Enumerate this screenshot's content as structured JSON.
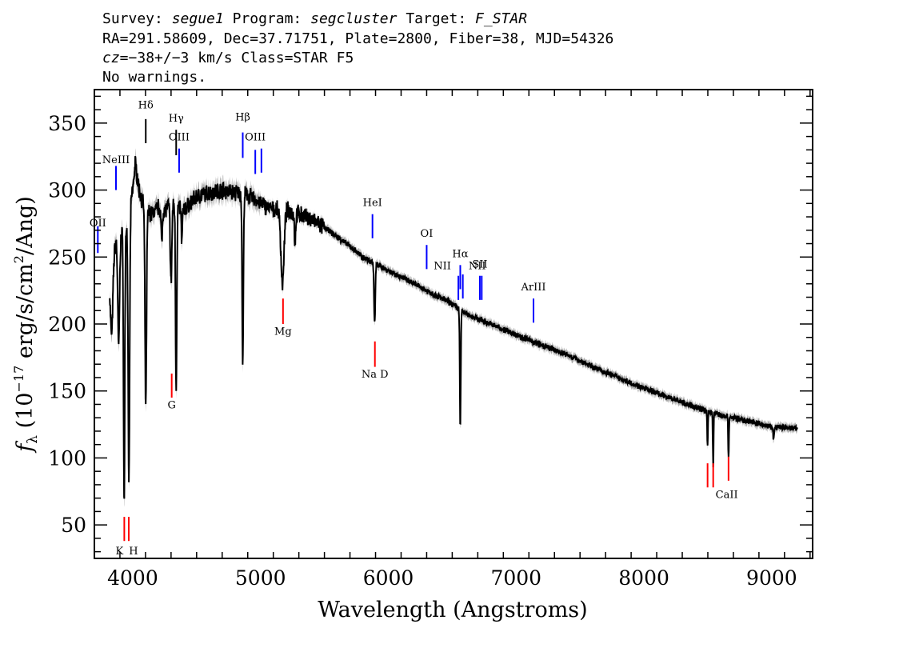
{
  "header": {
    "line1_prefix": "Survey: ",
    "survey": "segue1",
    "program_prefix": " Program: ",
    "program": "segcluster",
    "target_prefix": " Target: ",
    "target": "F_STAR",
    "line2": "RA=291.58609, Dec=37.71751, Plate=2800, Fiber=38, MJD=54326",
    "cz_prefix": "cz=",
    "cz_value": "−38+/−3",
    "cz_suffix": " km/s Class=STAR F5",
    "line4": "No warnings."
  },
  "chart_data": {
    "type": "line",
    "title": "",
    "xlabel": "Wavelength (Angstroms)",
    "ylabel": "f_λ (10^-17 erg/s/cm^2/Ang)",
    "ylabel_parts": {
      "f": "f",
      "sub": "λ",
      "pre": " (10",
      "exp1": "−17",
      "mid": " erg/s/cm",
      "exp2": "2",
      "post": "/Ang)"
    },
    "xlim": [
      3700,
      9320
    ],
    "ylim": [
      25,
      375
    ],
    "xticks": [
      4000,
      5000,
      6000,
      7000,
      8000,
      9000
    ],
    "yticks": [
      50,
      100,
      150,
      200,
      250,
      300,
      350
    ],
    "colors": {
      "spectrum": "#000000",
      "error_band": "#a9a9a9",
      "emission": "#0000ff",
      "absorption": "#ff0000",
      "lines": "#000000"
    },
    "continuum": [
      [
        3820,
        240
      ],
      [
        3850,
        255
      ],
      [
        3870,
        262
      ],
      [
        3900,
        265
      ],
      [
        3950,
        272
      ],
      [
        4000,
        300
      ],
      [
        4020,
        320
      ],
      [
        4050,
        300
      ],
      [
        4100,
        285
      ],
      [
        4150,
        282
      ],
      [
        4200,
        287
      ],
      [
        4250,
        285
      ],
      [
        4300,
        290
      ],
      [
        4350,
        288
      ],
      [
        4400,
        285
      ],
      [
        4500,
        295
      ],
      [
        4600,
        298
      ],
      [
        4700,
        300
      ],
      [
        4800,
        298
      ],
      [
        4900,
        296
      ],
      [
        5000,
        290
      ],
      [
        5100,
        285
      ],
      [
        5200,
        285
      ],
      [
        5300,
        282
      ],
      [
        5400,
        278
      ],
      [
        5500,
        272
      ],
      [
        5600,
        265
      ],
      [
        5700,
        258
      ],
      [
        5800,
        250
      ],
      [
        5900,
        245
      ],
      [
        6000,
        240
      ],
      [
        6200,
        230
      ],
      [
        6400,
        220
      ],
      [
        6500,
        215
      ],
      [
        6600,
        208
      ],
      [
        6800,
        200
      ],
      [
        7000,
        192
      ],
      [
        7200,
        184
      ],
      [
        7400,
        177
      ],
      [
        7600,
        168
      ],
      [
        7800,
        160
      ],
      [
        8000,
        152
      ],
      [
        8200,
        145
      ],
      [
        8400,
        138
      ],
      [
        8600,
        132
      ],
      [
        8800,
        128
      ],
      [
        9000,
        123
      ],
      [
        9200,
        122
      ]
    ],
    "absorption_features": [
      [
        3835,
        55,
        10
      ],
      [
        3890,
        80,
        7
      ],
      [
        3933,
        205,
        5
      ],
      [
        3970,
        200,
        6
      ],
      [
        4102,
        145,
        6
      ],
      [
        4227,
        25,
        5
      ],
      [
        4300,
        60,
        6
      ],
      [
        4340,
        135,
        5
      ],
      [
        4384,
        25,
        4
      ],
      [
        4861,
        125,
        5
      ],
      [
        5172,
        55,
        12
      ],
      [
        5270,
        22,
        5
      ],
      [
        5893,
        45,
        5
      ],
      [
        6563,
        87,
        4
      ],
      [
        8498,
        25,
        3
      ],
      [
        8542,
        40,
        3
      ],
      [
        8662,
        30,
        3
      ],
      [
        9015,
        10,
        4
      ]
    ],
    "emission_lines": [
      {
        "label": "OII",
        "wave": 3727,
        "x_offset": 0,
        "y0": 253,
        "y1": 273,
        "label_y": 273
      },
      {
        "label": "NeIII",
        "wave": 3869,
        "x_offset": 0,
        "y0": 300,
        "y1": 318,
        "label_y": 320
      },
      {
        "label": "OIII",
        "wave": 4363,
        "x_offset": 0,
        "y0": 313,
        "y1": 331,
        "label_y": 337
      },
      {
        "label": "Hβ",
        "wave": 4861,
        "x_offset": 0,
        "y0": 324,
        "y1": 343,
        "label_y": 352
      },
      {
        "label": "OIII",
        "wave": 4959,
        "x_offset": 0,
        "y0": 312,
        "y1": 330,
        "label_y": 337
      },
      {
        "label": "OIII",
        "wave": 5007,
        "x_offset": 0,
        "y0": 313,
        "y1": 331,
        "label_y": null
      },
      {
        "label": "HeI",
        "wave": 5876,
        "x_offset": 0,
        "y0": 264,
        "y1": 282,
        "label_y": 288
      },
      {
        "label": "OI",
        "wave": 6300,
        "x_offset": 0,
        "y0": 241,
        "y1": 259,
        "label_y": 265
      },
      {
        "label": "NII",
        "wave": 6548,
        "x_offset": -20,
        "y0": 218,
        "y1": 236,
        "label_y": 241
      },
      {
        "label": "Hα",
        "wave": 6563,
        "x_offset": 0,
        "y0": 226,
        "y1": 244,
        "label_y": 250
      },
      {
        "label": "NII",
        "wave": 6583,
        "x_offset": 18,
        "y0": 219,
        "y1": 237,
        "label_y": 241
      },
      {
        "label": "SII",
        "wave": 6716,
        "x_offset": 0,
        "y0": 218,
        "y1": 236,
        "label_y": 242
      },
      {
        "label": "SII",
        "wave": 6731,
        "x_offset": 0,
        "y0": 218,
        "y1": 236,
        "label_y": null
      },
      {
        "label": "ArIII",
        "wave": 7136,
        "x_offset": 0,
        "y0": 201,
        "y1": 219,
        "label_y": 225
      }
    ],
    "other_lines": [
      {
        "label": "Hδ",
        "wave": 4102,
        "y0": 335,
        "y1": 353,
        "label_y": 361
      },
      {
        "label": "Hγ",
        "wave": 4340,
        "y0": 326,
        "y1": 345,
        "label_y": 351
      }
    ],
    "absorption_lines": [
      {
        "label": "K",
        "wave": 3934,
        "y0": 38,
        "y1": 56,
        "label_y": 28,
        "label_x_offset": -6
      },
      {
        "label": "H",
        "wave": 3969,
        "y0": 38,
        "y1": 56,
        "label_y": 28,
        "label_x_offset": 6
      },
      {
        "label": "G",
        "wave": 4305,
        "y0": 145,
        "y1": 163,
        "label_y": 137,
        "label_x_offset": 0
      },
      {
        "label": "Mg",
        "wave": 5176,
        "y0": 200,
        "y1": 219,
        "label_y": 192,
        "label_x_offset": 0
      },
      {
        "label": "Na D",
        "wave": 5895,
        "y0": 168,
        "y1": 187,
        "label_y": 160,
        "label_x_offset": 0
      },
      {
        "label": "CaII",
        "wave": 8498,
        "y0": 78,
        "y1": 96,
        "label_y": 70,
        "label_x_offset": 24
      },
      {
        "label": "",
        "wave": 8542,
        "y0": 78,
        "y1": 96,
        "label_y": null,
        "label_x_offset": 0
      },
      {
        "label": "",
        "wave": 8662,
        "y0": 83,
        "y1": 101,
        "label_y": null,
        "label_x_offset": 0
      }
    ]
  }
}
